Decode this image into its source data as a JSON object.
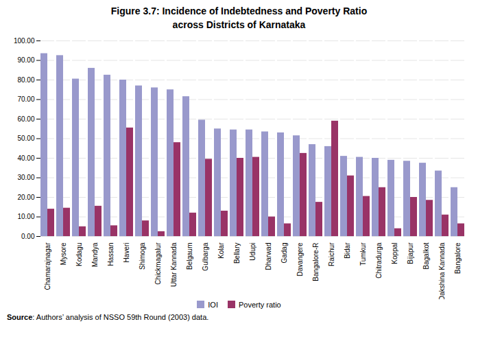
{
  "chart_data": {
    "type": "bar",
    "title": "Figure 3.7: Incidence of Indebtedness and Poverty Ratio\nacross Districts of Karnataka",
    "annotations": [
      "Source: Authors’ analysis of NSSO 59th Round (2003) data."
    ],
    "categories": [
      "Chamarajnagar",
      "Mysore",
      "Kodagu",
      "Mandya",
      "Hassan",
      "Haveri",
      "Shimoga",
      "Chickmagalur",
      "Uttar Kannada",
      "Belgaum",
      "Gulbarga",
      "Kolar",
      "Bellary",
      "Udupi",
      "Dharwad",
      "Gadag",
      "Davangere",
      "Bangalore-R",
      "Raichur",
      "Bidar",
      "Tumkur",
      "Chitradurga",
      "Koppal",
      "Bijapur",
      "Bagalkot",
      "Dakshina Kannada",
      "Bangalore"
    ],
    "series": [
      {
        "name": "IOI",
        "color": "#9999CC",
        "values": [
          93.5,
          92.5,
          80.5,
          86.0,
          82.5,
          80.0,
          77.0,
          76.0,
          75.0,
          71.5,
          59.5,
          55.0,
          54.5,
          54.5,
          53.5,
          53.0,
          51.5,
          47.0,
          46.0,
          41.0,
          40.5,
          40.0,
          39.0,
          38.5,
          37.5,
          33.5,
          25.0
        ]
      },
      {
        "name": "Poverty ratio",
        "color": "#993366",
        "values": [
          14.0,
          14.5,
          5.0,
          15.5,
          5.5,
          55.5,
          8.0,
          2.5,
          48.0,
          12.0,
          39.5,
          13.0,
          40.0,
          40.5,
          10.0,
          6.5,
          42.5,
          17.5,
          59.0,
          31.0,
          20.5,
          25.0,
          4.0,
          20.0,
          18.5,
          11.0,
          6.5
        ]
      }
    ],
    "ylim": [
      0,
      100
    ],
    "yticks": [
      {
        "value": 0,
        "label": "0.00"
      },
      {
        "value": 10,
        "label": "10.00"
      },
      {
        "value": 20,
        "label": "20.00"
      },
      {
        "value": 30,
        "label": "30.00"
      },
      {
        "value": 40,
        "label": "40.00"
      },
      {
        "value": 50,
        "label": "50.00"
      },
      {
        "value": 60,
        "label": "60.00"
      },
      {
        "value": 70,
        "label": "70.00"
      },
      {
        "value": 80,
        "label": "80.00"
      },
      {
        "value": 90,
        "label": "90.00"
      },
      {
        "value": 100,
        "label": "100.00"
      }
    ],
    "grid": true,
    "legend": "bottom"
  }
}
